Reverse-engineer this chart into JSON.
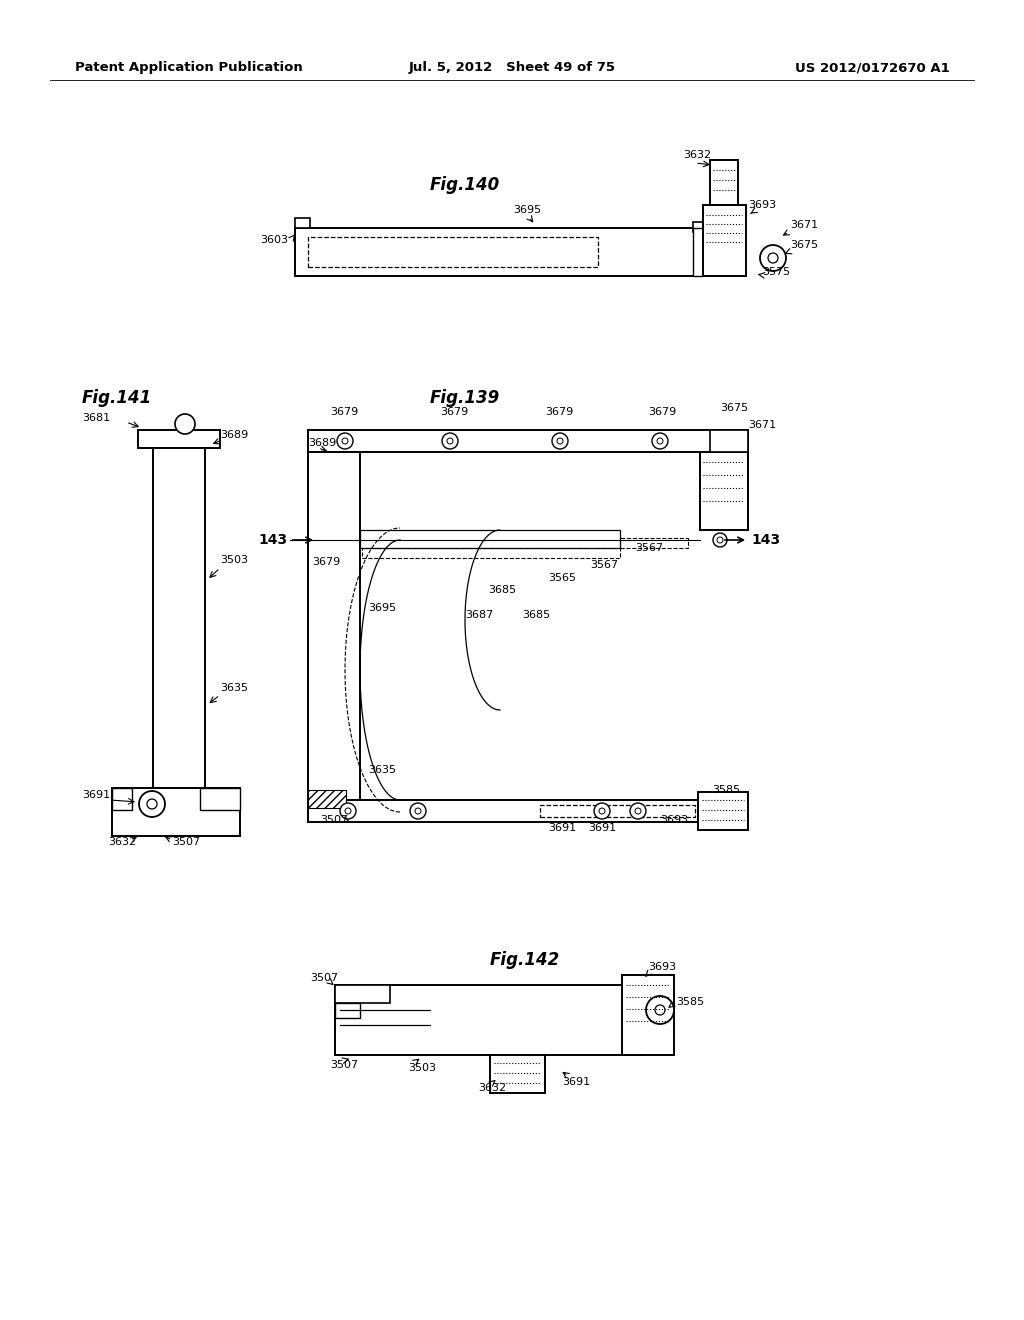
{
  "background_color": "#ffffff",
  "header_left": "Patent Application Publication",
  "header_center": "Jul. 5, 2012   Sheet 49 of 75",
  "header_right": "US 2012/0172670 A1",
  "header_fontsize": 9.5
}
